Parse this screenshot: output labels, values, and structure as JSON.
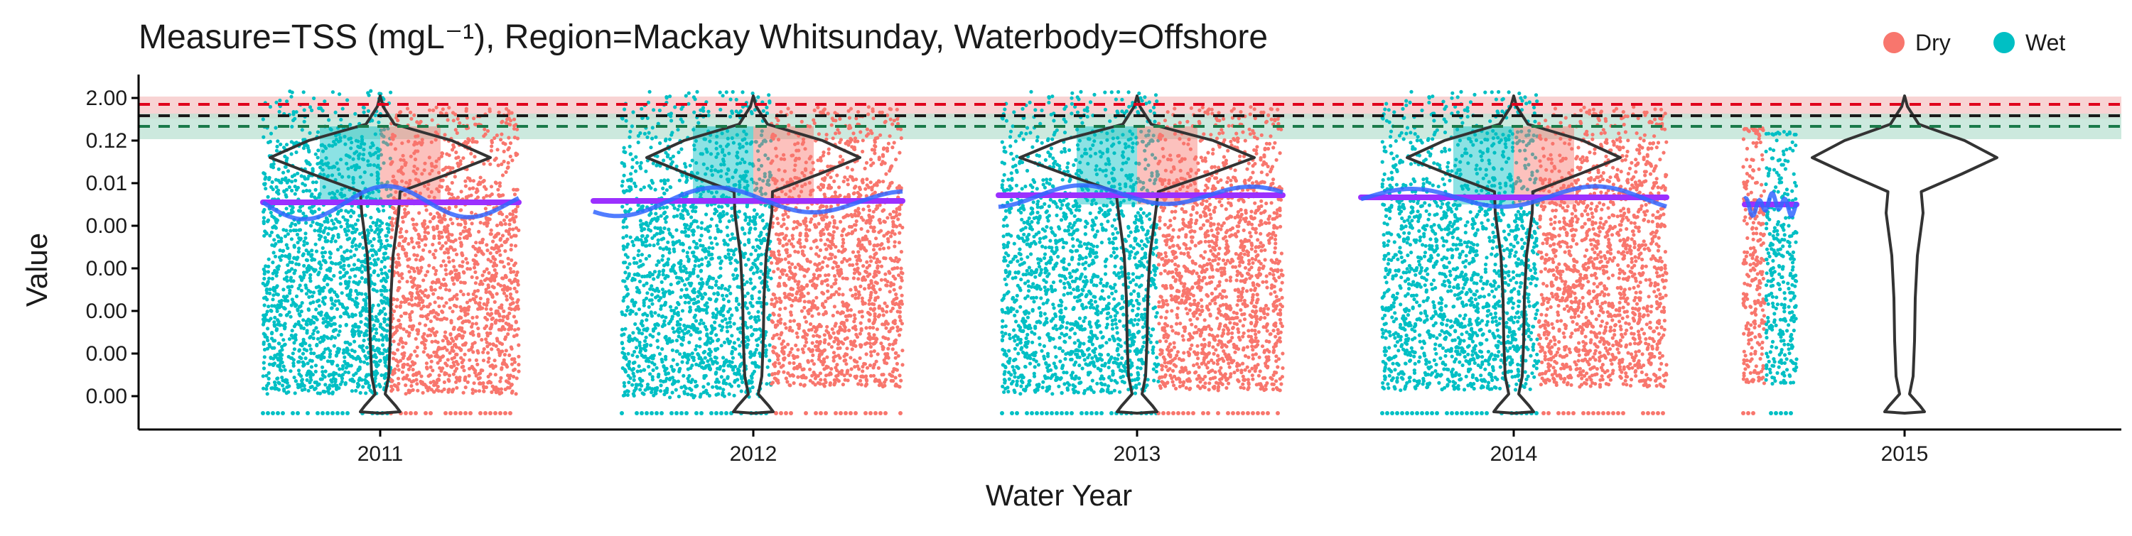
{
  "chart_data": {
    "type": "scatter",
    "title": "Measure=TSS (mgL⁻¹), Region=Mackay Whitsunday, Waterbody=Offshore",
    "xlabel": "Water Year",
    "ylabel": "Value",
    "x_categories": [
      "2011",
      "2012",
      "2013",
      "2014",
      "2015"
    ],
    "y_tick_labels": [
      "2.00",
      "0.12",
      "0.01",
      "0.00",
      "0.00",
      "0.00",
      "0.00",
      "0.00"
    ],
    "legend": {
      "placement": "top-right",
      "entries": [
        {
          "name": "Dry",
          "color": "#F8766D"
        },
        {
          "name": "Wet",
          "color": "#00BFC4"
        }
      ]
    },
    "colors": {
      "dry": "#F8766D",
      "wet": "#00BFC4",
      "smooth_line": "#3366FF",
      "median_line": "#9B30FF",
      "guideline_red": "#E0001B",
      "guideline_dark": "#1a1a1a",
      "guideline_green": "#1a7a4a",
      "band_red": "#F6C4C4",
      "band_green": "#BFE3D6",
      "violin_outline": "#333333"
    },
    "grid": false,
    "reference_lines": [
      {
        "style": "dashed",
        "color": "red",
        "y_tick_level": "2.00"
      },
      {
        "style": "dashed",
        "color": "black",
        "y_tick_level": "between 2.00 and 0.12"
      },
      {
        "style": "dashed",
        "color": "green",
        "y_tick_level": "between 2.00 and 0.12"
      }
    ],
    "groups": [
      {
        "year": "2011",
        "median_level": "0.00",
        "has_points": true
      },
      {
        "year": "2012",
        "median_level": "0.00",
        "has_points": true
      },
      {
        "year": "2013",
        "median_level": "0.01",
        "has_points": true
      },
      {
        "year": "2014",
        "median_level": "0.00",
        "has_points": true
      },
      {
        "year": "2015",
        "median_level": "0.00",
        "has_points": true
      }
    ]
  }
}
